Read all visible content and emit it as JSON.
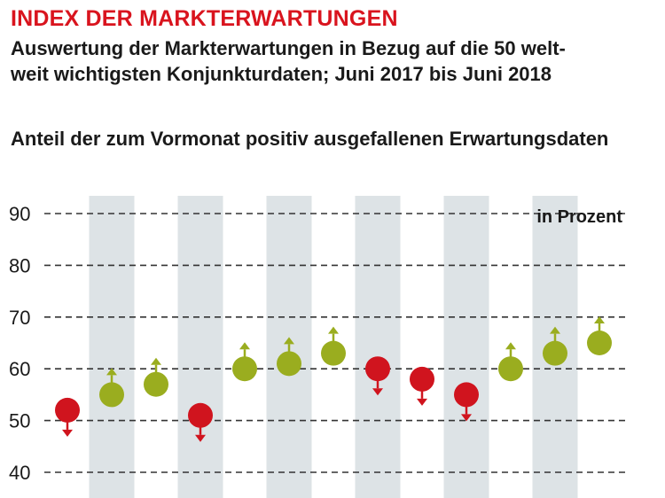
{
  "header": {
    "title": "INDEX DER MARKTERWARTUNGEN",
    "subtitle_line1": "Auswertung der Markterwartungen in Bezug auf die 50 welt-",
    "subtitle_line2": "weit wichtigsten Konjunkturdaten; Juni 2017 bis Juni 2018",
    "chart_subtitle": "Anteil der zum Vormonat positiv ausgefallenen Erwartungsdaten"
  },
  "colors": {
    "title": "#d9141e",
    "up": "#9aad1f",
    "down": "#d0141e",
    "band": "#dde3e6",
    "grid": "#333333"
  },
  "chart_data": {
    "type": "scatter",
    "unit_label": "in Prozent",
    "ylim": [
      40,
      90
    ],
    "yticks": [
      90,
      80,
      70,
      60,
      50,
      40
    ],
    "grid": true,
    "values": [
      52,
      55,
      57,
      51,
      60,
      61,
      63,
      60,
      58,
      55,
      60,
      63,
      65
    ],
    "direction": [
      "down",
      "up",
      "up",
      "down",
      "up",
      "up",
      "up",
      "down",
      "down",
      "down",
      "up",
      "up",
      "up"
    ]
  }
}
